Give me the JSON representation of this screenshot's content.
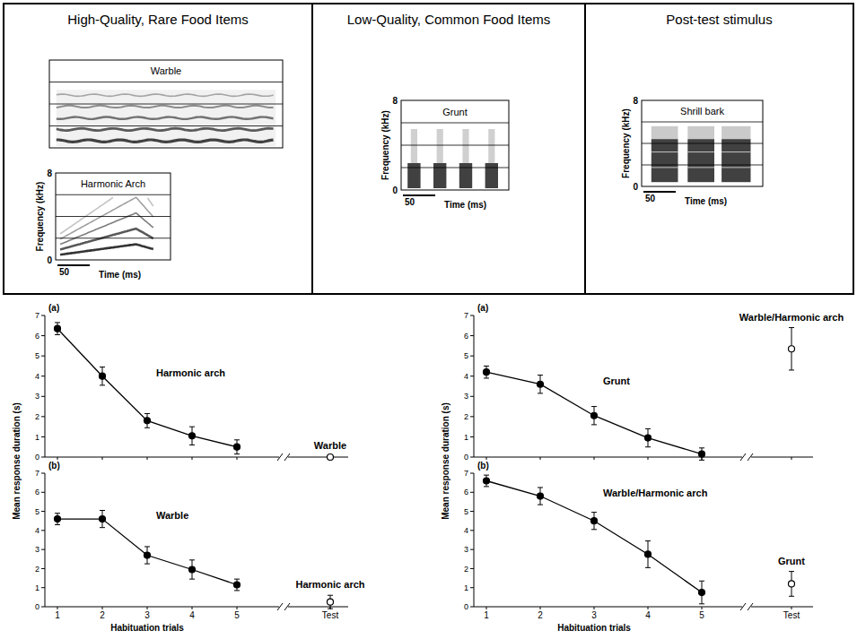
{
  "panels": [
    {
      "title": "High-Quality, Rare Food Items",
      "spectrograms": [
        {
          "label": "Warble"
        },
        {
          "label": "Harmonic Arch",
          "ylabel": "Frequency (kHz)",
          "ylim": [
            0,
            8
          ],
          "yticks": [
            0,
            8
          ],
          "scale_bar": 50,
          "xlabel": "Time (ms)"
        }
      ]
    },
    {
      "title": "Low-Quality, Common Food Items",
      "spectrograms": [
        {
          "label": "Grunt",
          "ylabel": "Frequency (kHz)",
          "ylim": [
            0,
            8
          ],
          "yticks": [
            0,
            8
          ],
          "scale_bar": 50,
          "xlabel": "Time (ms)"
        }
      ]
    },
    {
      "title": "Post-test stimulus",
      "spectrograms": [
        {
          "label": "Shrill bark",
          "ylabel": "Frequency (kHz)",
          "ylim": [
            0,
            8
          ],
          "yticks": [
            0,
            8
          ],
          "scale_bar": 50,
          "xlabel": "Time (ms)"
        }
      ]
    }
  ],
  "chart_data": [
    {
      "type": "line",
      "panel_label": "(a)",
      "ylabel": "Mean response duration (s)",
      "categories": [
        "1",
        "2",
        "3",
        "4",
        "5",
        "Test"
      ],
      "ylim": [
        0,
        7
      ],
      "yticks": [
        0,
        1,
        2,
        3,
        4,
        5,
        6,
        7
      ],
      "tick_labels": "y",
      "series": [
        {
          "name": "Harmonic arch",
          "color": "#000000",
          "marker": "filled",
          "line_style": "solid",
          "values": [
            6.35,
            4.0,
            1.8,
            1.05,
            0.5,
            null
          ],
          "errors": [
            0.3,
            0.45,
            0.35,
            0.45,
            0.35,
            null
          ]
        },
        {
          "name": "Warble",
          "color": "#000000",
          "marker": "open",
          "line_style": "none",
          "values": [
            null,
            null,
            null,
            null,
            null,
            0.0
          ],
          "errors": [
            null,
            null,
            null,
            null,
            null,
            0.05
          ]
        }
      ]
    },
    {
      "type": "line",
      "panel_label": "(b)",
      "xlabel": "Habituation trials",
      "categories": [
        "1",
        "2",
        "3",
        "4",
        "5",
        "Test"
      ],
      "ylim": [
        0,
        7
      ],
      "yticks": [
        0,
        1,
        2,
        3,
        4,
        5,
        6,
        7
      ],
      "series": [
        {
          "name": "Warble",
          "color": "#000000",
          "marker": "filled",
          "line_style": "solid",
          "values": [
            4.6,
            4.6,
            2.7,
            1.95,
            1.15,
            null
          ],
          "errors": [
            0.3,
            0.45,
            0.45,
            0.5,
            0.3,
            null
          ]
        },
        {
          "name": "Harmonic arch",
          "color": "#000000",
          "marker": "open",
          "line_style": "none",
          "values": [
            null,
            null,
            null,
            null,
            null,
            0.25
          ],
          "errors": [
            null,
            null,
            null,
            null,
            null,
            0.35
          ]
        }
      ]
    },
    {
      "type": "line",
      "panel_label": "(a)",
      "ylabel": "Mean response duration (s)",
      "categories": [
        "1",
        "2",
        "3",
        "4",
        "5",
        "Test"
      ],
      "ylim": [
        0,
        7
      ],
      "yticks": [
        0,
        1,
        2,
        3,
        4,
        5,
        6,
        7
      ],
      "tick_labels": "y",
      "series": [
        {
          "name": "Grunt",
          "color": "#000000",
          "marker": "filled",
          "line_style": "solid",
          "values": [
            4.2,
            3.6,
            2.05,
            0.95,
            0.15,
            null
          ],
          "errors": [
            0.3,
            0.45,
            0.45,
            0.45,
            0.3,
            null
          ]
        },
        {
          "name": "Warble/Harmonic arch",
          "color": "#000000",
          "marker": "open",
          "line_style": "none",
          "values": [
            null,
            null,
            null,
            null,
            null,
            5.35
          ],
          "errors": [
            null,
            null,
            null,
            null,
            null,
            1.05
          ]
        }
      ]
    },
    {
      "type": "line",
      "panel_label": "(b)",
      "xlabel": "Habituation trials",
      "categories": [
        "1",
        "2",
        "3",
        "4",
        "5",
        "Test"
      ],
      "ylim": [
        0,
        7
      ],
      "yticks": [
        0,
        1,
        2,
        3,
        4,
        5,
        6,
        7
      ],
      "series": [
        {
          "name": "Warble/Harmonic arch",
          "color": "#000000",
          "marker": "filled",
          "line_style": "solid",
          "values": [
            6.6,
            5.8,
            4.5,
            2.75,
            0.75,
            null
          ],
          "errors": [
            0.3,
            0.45,
            0.45,
            0.7,
            0.6,
            null
          ]
        },
        {
          "name": "Grunt",
          "color": "#000000",
          "marker": "open",
          "line_style": "none",
          "values": [
            null,
            null,
            null,
            null,
            null,
            1.2
          ],
          "errors": [
            null,
            null,
            null,
            null,
            null,
            0.65
          ]
        }
      ]
    }
  ]
}
